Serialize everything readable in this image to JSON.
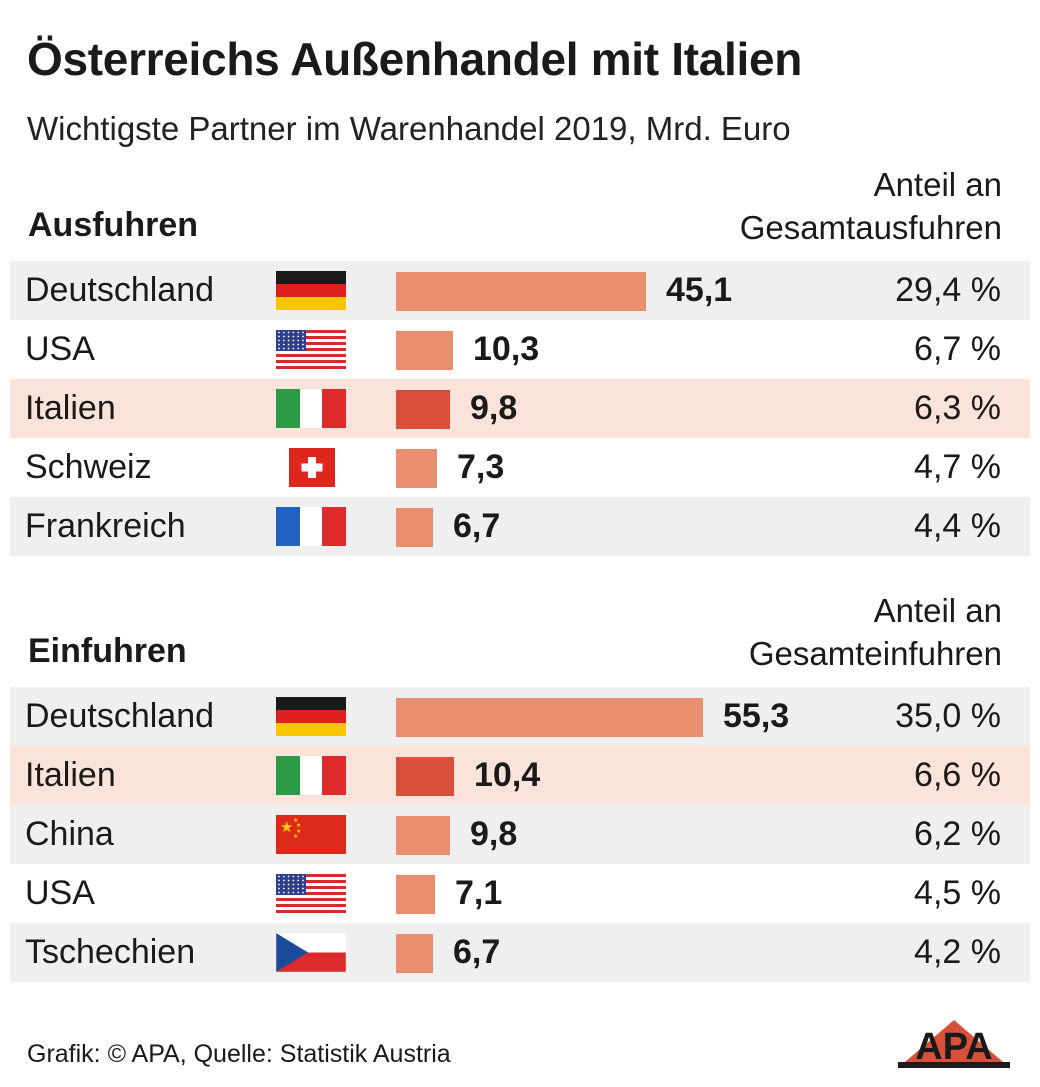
{
  "title": "Österreichs Außenhandel mit Italien",
  "subtitle": "Wichtigste Partner im Warenhandel 2019, Mrd. Euro",
  "footer": "Grafik: © APA, Quelle: Statistik Austria",
  "logo_text": "APA",
  "colors": {
    "bar": "#e98f70",
    "bar_highlight": "#d9503a",
    "row_alt": "#efefef",
    "row_highlight": "#fbe3d9"
  },
  "chart_data": [
    {
      "type": "bar",
      "title": "Ausfuhren",
      "share_label_line1": "Anteil an",
      "share_label_line2": "Gesamtausfuhren",
      "categories": [
        "Deutschland",
        "USA",
        "Italien",
        "Schweiz",
        "Frankreich"
      ],
      "values": [
        45.1,
        10.3,
        9.8,
        7.3,
        6.7
      ],
      "value_labels": [
        "45,1",
        "10,3",
        "9,8",
        "7,3",
        "6,7"
      ],
      "shares": [
        "29,4 %",
        "6,7 %",
        "6,3 %",
        "4,7 %",
        "4,4 %"
      ],
      "flags": [
        "germany-flag",
        "usa-flag",
        "italy-flag",
        "switzerland-flag",
        "france-flag"
      ],
      "highlight": "Italien"
    },
    {
      "type": "bar",
      "title": "Einfuhren",
      "share_label_line1": "Anteil an",
      "share_label_line2": "Gesamteinfuhren",
      "categories": [
        "Deutschland",
        "Italien",
        "China",
        "USA",
        "Tschechien"
      ],
      "values": [
        55.3,
        10.4,
        9.8,
        7.1,
        6.7
      ],
      "value_labels": [
        "55,3",
        "10,4",
        "9,8",
        "7,1",
        "6,7"
      ],
      "shares": [
        "35,0 %",
        "6,6 %",
        "6,2 %",
        "4,5 %",
        "4,2 %"
      ],
      "flags": [
        "germany-flag",
        "italy-flag",
        "china-flag",
        "usa-flag",
        "czech-flag"
      ],
      "highlight": "Italien"
    }
  ]
}
